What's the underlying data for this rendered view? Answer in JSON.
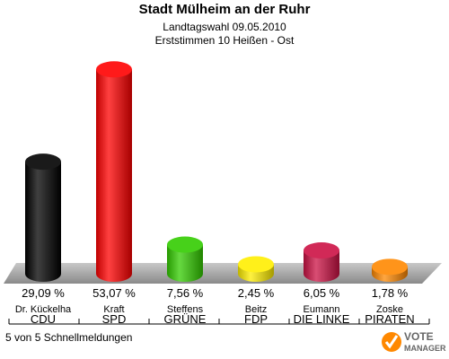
{
  "header": {
    "title": "Stadt Mülheim an der Ruhr",
    "subtitle1": "Landtagswahl 09.05.2010",
    "subtitle2": "Erststimmen 10 Heißen - Ost"
  },
  "footer": {
    "note": "5 von 5 Schnellmeldungen"
  },
  "logo": {
    "text_top": "VOTE",
    "text_bottom": "MANAGER"
  },
  "chart_data": {
    "type": "bar",
    "style": "3d-cylinder",
    "categories": [
      "CDU",
      "SPD",
      "GRÜNE",
      "FDP",
      "DIE LINKE",
      "PIRATEN"
    ],
    "candidates": [
      "Dr. Kückelha",
      "Kraft",
      "Steffens",
      "Beitz",
      "Eumann",
      "Zoske"
    ],
    "values": [
      29.09,
      53.07,
      7.56,
      2.45,
      6.05,
      1.78
    ],
    "value_labels": [
      "29,09 %",
      "53,07 %",
      "7,56 %",
      "2,45 %",
      "6,05 %",
      "1,78 %"
    ],
    "colors": [
      "#000000",
      "#ff0000",
      "#33cc00",
      "#ffee00",
      "#cc1144",
      "#ff8800"
    ],
    "ylim": [
      0,
      55
    ],
    "grid": false,
    "legend": "none"
  }
}
